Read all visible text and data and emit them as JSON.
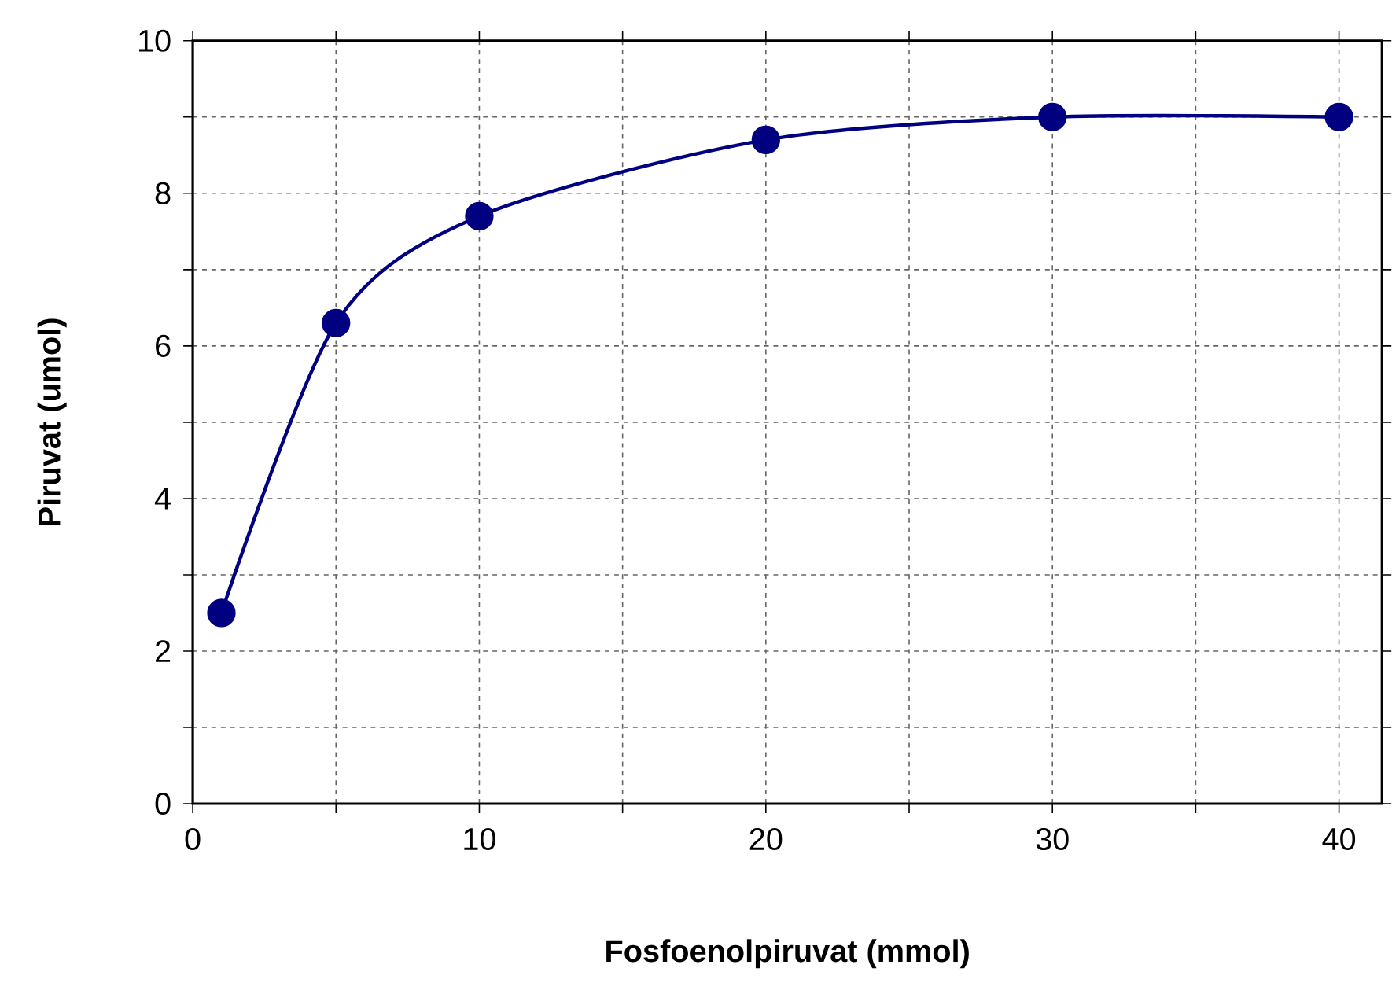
{
  "chart_data": {
    "type": "line",
    "xlabel": "Fosfoenolpiruvat (mmol)",
    "ylabel": "Piruvat (umol)",
    "x": [
      1,
      5,
      10,
      20,
      30,
      40
    ],
    "series": [
      {
        "color": "#000080",
        "values": [
          2.5,
          6.3,
          7.7,
          8.7,
          9.0,
          9.0
        ]
      }
    ],
    "xlim": [
      0,
      41.5
    ],
    "xticks": [
      0,
      {
        "value": 5,
        "label": null
      },
      10,
      {
        "value": 15,
        "label": null
      },
      20,
      {
        "value": 25,
        "label": null
      },
      30,
      {
        "value": 35,
        "label": null
      },
      40
    ],
    "ylim": [
      0,
      10
    ],
    "yticks": [
      0,
      {
        "value": 1,
        "label": null
      },
      2,
      {
        "value": 3,
        "label": null
      },
      4,
      {
        "value": 5,
        "label": null
      },
      6,
      {
        "value": 7,
        "label": null
      },
      8,
      {
        "value": 9,
        "label": null
      },
      10
    ],
    "grid": true,
    "marker": "circle",
    "line_style": "solid"
  }
}
